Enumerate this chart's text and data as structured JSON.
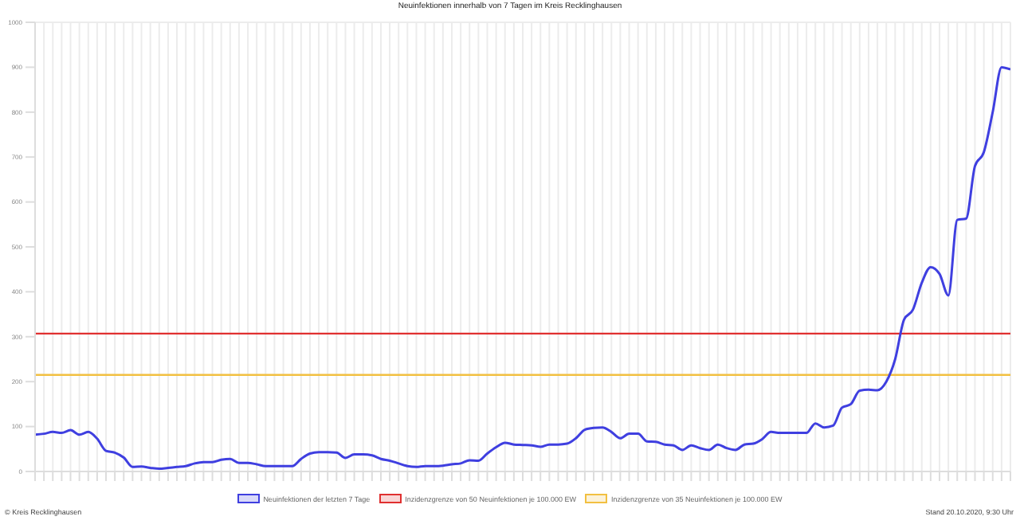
{
  "chart_data": {
    "type": "line",
    "title": "Neuinfektionen innerhalb von 7 Tagen im Kreis Recklinghausen",
    "categories": [
      null,
      null,
      null,
      null,
      null,
      null,
      null,
      null,
      null,
      null,
      null,
      null,
      null,
      null,
      null,
      null,
      null,
      null,
      null,
      null,
      null,
      null,
      null,
      null,
      null,
      null,
      null,
      null,
      null,
      null,
      null,
      null,
      null,
      null,
      null,
      null,
      null,
      null,
      null,
      null,
      null,
      null,
      null,
      null,
      null,
      null,
      null,
      null,
      null,
      null,
      null,
      null,
      null,
      null,
      null,
      null,
      null,
      null,
      null,
      null,
      null,
      null,
      null,
      null,
      null,
      null,
      null,
      null,
      null,
      null,
      null,
      null,
      null,
      null,
      null,
      null,
      null,
      null,
      null,
      null,
      null,
      null,
      null,
      null,
      null,
      null,
      null,
      null,
      null,
      null,
      null,
      null,
      null,
      null,
      null,
      null,
      null,
      null,
      null,
      null,
      null,
      null,
      null,
      null,
      null,
      null,
      null,
      null,
      null,
      null,
      null
    ],
    "series": [
      {
        "name": "Neuinfektionen der letzten 7 Tage",
        "color": "#3f3fe0",
        "values": [
          82,
          84,
          88,
          86,
          92,
          82,
          88,
          73,
          46,
          42,
          31,
          10,
          11,
          8,
          6,
          8,
          10,
          12,
          18,
          21,
          21,
          26,
          28,
          19,
          19,
          16,
          12,
          12,
          12,
          12,
          28,
          40,
          43,
          43,
          42,
          30,
          38,
          38,
          36,
          28,
          24,
          18,
          12,
          10,
          12,
          12,
          13,
          16,
          18,
          25,
          24,
          40,
          54,
          64,
          60,
          59,
          58,
          55,
          60,
          60,
          62,
          74,
          93,
          97,
          98,
          88,
          74,
          84,
          84,
          67,
          66,
          60,
          58,
          48,
          58,
          52,
          48,
          60,
          52,
          48,
          60,
          62,
          72,
          88,
          86,
          86,
          86,
          86,
          107,
          98,
          102,
          142,
          150,
          180,
          182,
          181,
          200,
          250,
          338,
          360,
          420,
          455,
          440,
          392,
          560,
          563,
          680,
          711,
          800,
          900,
          895
        ]
      }
    ],
    "ylim": [
      0,
      1000
    ],
    "yticks": [
      0,
      100,
      200,
      300,
      400,
      500,
      600,
      700,
      800,
      900,
      1000
    ],
    "ref_lines": [
      {
        "axis": "y",
        "value": 307,
        "label": "Inzidenzgrenze von 50 Neuinfektionen je 100.000 EW",
        "color": "#e03030"
      },
      {
        "axis": "y",
        "value": 215,
        "label": "Inzidenzgrenze von 35 Neuinfektionen je 100.000 EW",
        "color": "#f2c041"
      }
    ],
    "grid": true,
    "legend": "bottom",
    "marker": "none",
    "line_style": "solid",
    "annotations": [
      "© Kreis Recklinghausen",
      "Stand 20.10.2020, 9:30 Uhr"
    ]
  }
}
